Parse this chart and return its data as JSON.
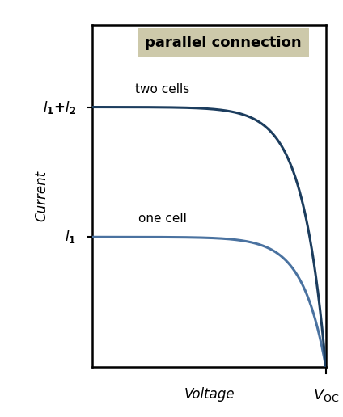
{
  "title": "parallel connection",
  "title_bg_color": "#cdc9aa",
  "title_fontsize": 13,
  "xlabel": "Voltage",
  "ylabel": "Current",
  "label_two_cells": "two cells",
  "label_one_cell": "one cell",
  "label_I1_I2": "$\\mathbf{\\mathit{I}_1 + \\mathit{I}_2}$",
  "label_I1": "$\\mathbf{\\mathit{I}_1}$",
  "label_Voc_bold": "$\\mathbf{\\mathit{V}}$",
  "label_Voc_sub": "OC",
  "curve_color_dark": "#1c3d5e",
  "curve_color_light": "#4a72a0",
  "bg_color": "#ffffff",
  "Isc_two": 0.76,
  "Isc_one": 0.38,
  "Voc": 1.0,
  "curve_steepness": 10
}
